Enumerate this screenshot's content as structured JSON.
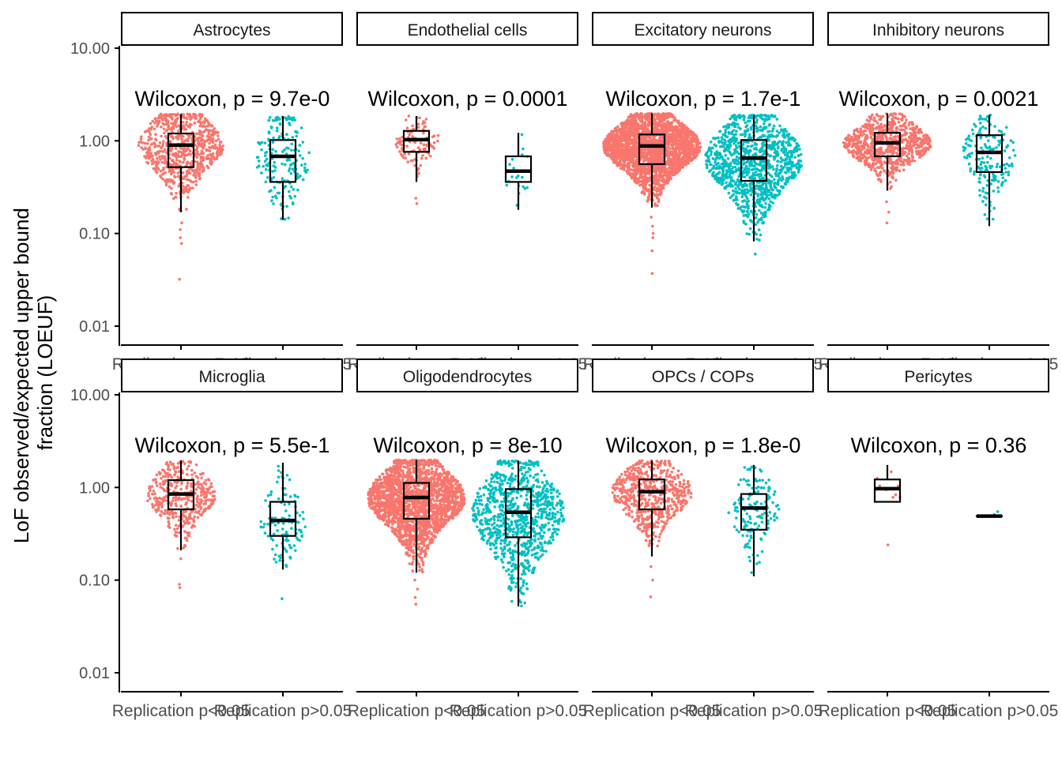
{
  "chart_data": {
    "type": "box",
    "ylabel_line1": "LoF observed/expected upper bound",
    "ylabel_line2": "fraction (LOEUF)",
    "y_scale": "log10",
    "ylim": [
      0.008,
      2.5
    ],
    "y_ticks": [
      {
        "value": 10,
        "label": "10.00"
      },
      {
        "value": 1,
        "label": "1.00"
      },
      {
        "value": 0.1,
        "label": "0.10"
      },
      {
        "value": 0.01,
        "label": "0.01"
      }
    ],
    "categories": [
      "Replication p<0.05",
      "Replication p>0.05"
    ],
    "series_colors": {
      "Replication p<0.05": "#F8766D",
      "Replication p>0.05": "#00BFC4"
    },
    "panels": [
      {
        "name": "Astrocytes",
        "annotation": "Wilcoxon, p = 9.7e-0",
        "groups": [
          {
            "category": "Replication p<0.05",
            "n": 700,
            "min": 0.17,
            "q1": 0.52,
            "median": 0.9,
            "q3": 1.2,
            "max": 1.95,
            "outliers": [
              0.13,
              0.11,
              0.09,
              0.078,
              0.032
            ]
          },
          {
            "category": "Replication p>0.05",
            "n": 180,
            "min": 0.14,
            "q1": 0.36,
            "median": 0.68,
            "q3": 1.02,
            "max": 1.85,
            "outliers": []
          }
        ]
      },
      {
        "name": "Endothelial cells",
        "annotation": "Wilcoxon, p = 0.0001",
        "groups": [
          {
            "category": "Replication p<0.05",
            "n": 100,
            "min": 0.36,
            "q1": 0.76,
            "median": 1.03,
            "q3": 1.28,
            "max": 1.85,
            "outliers": [
              0.24,
              0.21
            ]
          },
          {
            "category": "Replication p>0.05",
            "n": 20,
            "min": 0.18,
            "q1": 0.36,
            "median": 0.47,
            "q3": 0.68,
            "max": 1.22,
            "outliers": []
          }
        ]
      },
      {
        "name": "Excitatory neurons",
        "annotation": "Wilcoxon, p = 1.7e-1",
        "groups": [
          {
            "category": "Replication p<0.05",
            "n": 2500,
            "min": 0.19,
            "q1": 0.56,
            "median": 0.88,
            "q3": 1.17,
            "max": 1.98,
            "outliers": [
              0.15,
              0.12,
              0.1,
              0.09,
              0.065,
              0.037
            ]
          },
          {
            "category": "Replication p>0.05",
            "n": 1100,
            "min": 0.082,
            "q1": 0.37,
            "median": 0.65,
            "q3": 1.02,
            "max": 1.9,
            "outliers": [
              0.06
            ]
          }
        ]
      },
      {
        "name": "Inhibitory neurons",
        "annotation": "Wilcoxon, p = 0.0021",
        "groups": [
          {
            "category": "Replication p<0.05",
            "n": 800,
            "min": 0.29,
            "q1": 0.68,
            "median": 0.95,
            "q3": 1.22,
            "max": 1.98,
            "outliers": [
              0.22,
              0.17,
              0.13
            ]
          },
          {
            "category": "Replication p>0.05",
            "n": 170,
            "min": 0.12,
            "q1": 0.46,
            "median": 0.75,
            "q3": 1.15,
            "max": 1.9,
            "outliers": []
          }
        ]
      },
      {
        "name": "Microglia",
        "annotation": "Wilcoxon, p = 5.5e-1",
        "groups": [
          {
            "category": "Replication p<0.05",
            "n": 400,
            "min": 0.21,
            "q1": 0.58,
            "median": 0.85,
            "q3": 1.2,
            "max": 1.95,
            "outliers": [
              0.17,
              0.09,
              0.083
            ]
          },
          {
            "category": "Replication p>0.05",
            "n": 110,
            "min": 0.13,
            "q1": 0.3,
            "median": 0.44,
            "q3": 0.7,
            "max": 1.85,
            "outliers": [
              0.063
            ]
          }
        ]
      },
      {
        "name": "Oligodendrocytes",
        "annotation": "Wilcoxon, p = 8e-10",
        "groups": [
          {
            "category": "Replication p<0.05",
            "n": 2200,
            "min": 0.12,
            "q1": 0.46,
            "median": 0.78,
            "q3": 1.12,
            "max": 1.98,
            "outliers": [
              0.1,
              0.08,
              0.065,
              0.055
            ]
          },
          {
            "category": "Replication p>0.05",
            "n": 900,
            "min": 0.052,
            "q1": 0.29,
            "median": 0.54,
            "q3": 0.96,
            "max": 1.95,
            "outliers": []
          }
        ]
      },
      {
        "name": "OPCs / COPs",
        "annotation": "Wilcoxon, p = 1.8e-0",
        "groups": [
          {
            "category": "Replication p<0.05",
            "n": 600,
            "min": 0.18,
            "q1": 0.58,
            "median": 0.9,
            "q3": 1.22,
            "max": 1.95,
            "outliers": [
              0.14,
              0.1,
              0.066
            ]
          },
          {
            "category": "Replication p>0.05",
            "n": 150,
            "min": 0.11,
            "q1": 0.35,
            "median": 0.6,
            "q3": 0.85,
            "max": 1.75,
            "outliers": []
          }
        ]
      },
      {
        "name": "Pericytes",
        "annotation": "Wilcoxon, p = 0.36",
        "groups": [
          {
            "category": "Replication p<0.05",
            "n": 8,
            "min": 0.7,
            "q1": 0.7,
            "median": 0.97,
            "q3": 1.22,
            "max": 1.75,
            "outliers": [
              0.24
            ]
          },
          {
            "category": "Replication p>0.05",
            "n": 2,
            "min": 0.49,
            "q1": 0.49,
            "median": 0.49,
            "q3": 0.49,
            "max": 0.49,
            "outliers": []
          }
        ]
      }
    ]
  }
}
